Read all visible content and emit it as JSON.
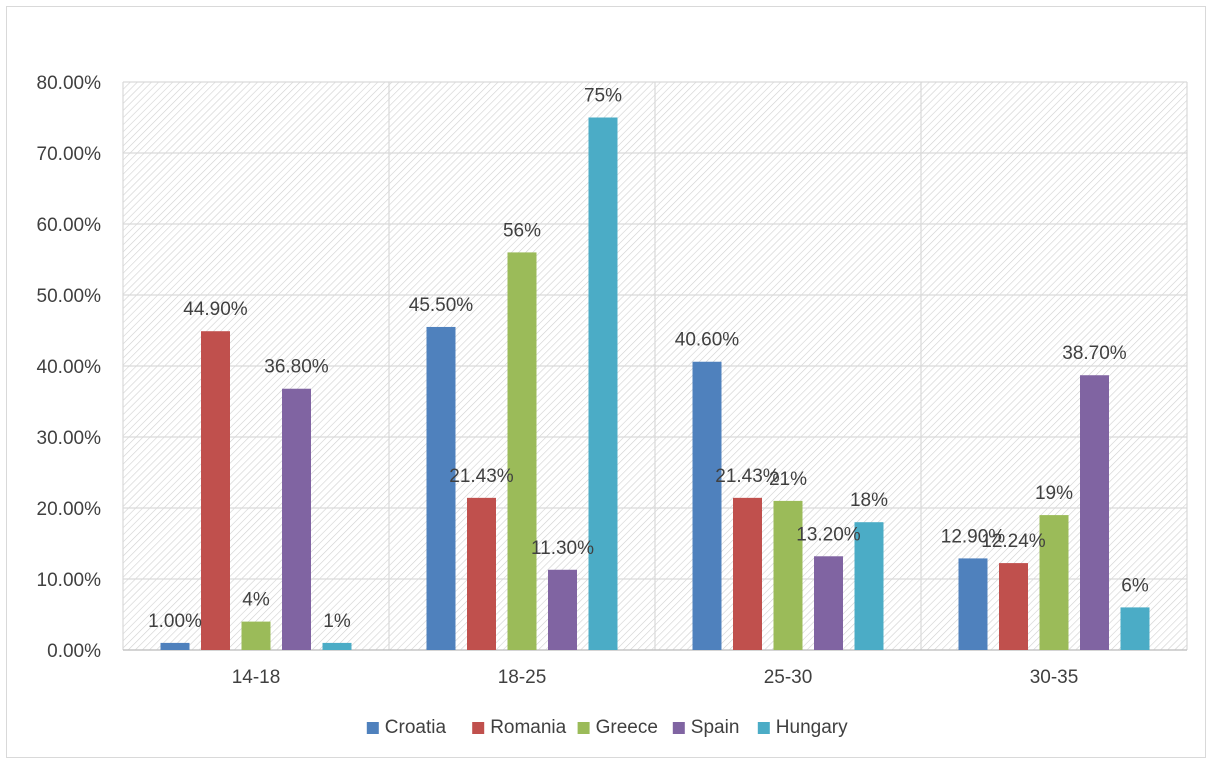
{
  "chart_data": {
    "type": "bar",
    "title": "",
    "xlabel": "",
    "ylabel": "",
    "categories": [
      "14-18",
      "18-25",
      "25-30",
      "30-35"
    ],
    "series": [
      {
        "name": "Croatia",
        "color": "#4F81BD",
        "values": [
          1.0,
          45.5,
          40.6,
          12.9
        ],
        "labels": [
          "1.00%",
          "45.50%",
          "40.60%",
          "12.90%"
        ]
      },
      {
        "name": "Romania",
        "color": "#C0504D",
        "values": [
          44.9,
          21.43,
          21.43,
          12.24
        ],
        "labels": [
          "44.90%",
          "21.43%",
          "21.43%",
          "12.24%"
        ]
      },
      {
        "name": "Greece",
        "color": "#9BBB59",
        "values": [
          4,
          56,
          21,
          19
        ],
        "labels": [
          "4%",
          "56%",
          "21%",
          "19%"
        ]
      },
      {
        "name": "Spain",
        "color": "#8064A2",
        "values": [
          36.8,
          11.3,
          13.2,
          38.7
        ],
        "labels": [
          "36.80%",
          "11.30%",
          "13.20%",
          "38.70%"
        ]
      },
      {
        "name": "Hungary",
        "color": "#4BACC6",
        "values": [
          1,
          75,
          18,
          6
        ],
        "labels": [
          "1%",
          "75%",
          "18%",
          "6%"
        ]
      }
    ],
    "ylim": [
      0,
      80
    ],
    "yticks": [
      "0.00%",
      "10.00%",
      "20.00%",
      "30.00%",
      "40.00%",
      "50.00%",
      "60.00%",
      "70.00%",
      "80.00%"
    ],
    "grid": true,
    "legend": "bottom"
  }
}
